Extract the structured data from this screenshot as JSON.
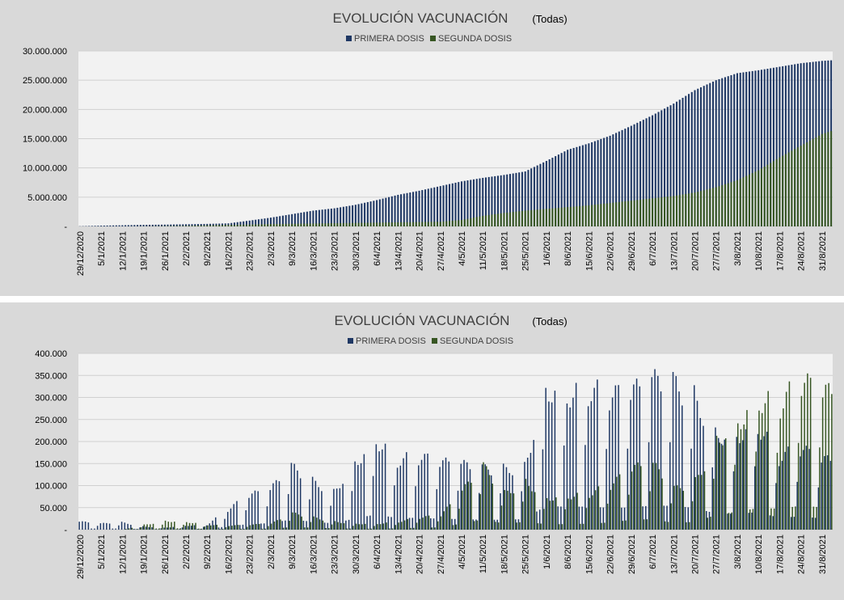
{
  "colors": {
    "first_dose": "#1f3864",
    "second_dose": "#375623",
    "plot_bg": "#f2f2f2",
    "grid": "#d0d0d0"
  },
  "chart_data": [
    {
      "type": "bar",
      "title": "EVOLUCIÓN VACUNACIÓN",
      "subtitle": "(Todas)",
      "legend": [
        "PRIMERA DOSIS",
        "SEGUNDA DOSIS"
      ],
      "legend_position": "top",
      "grid": true,
      "ylim": [
        0,
        30000000
      ],
      "ytick_labels": [
        "30.000.000",
        "25.000.000",
        "20.000.000",
        "15.000.000",
        "10.000.000",
        "5.000.000",
        "-"
      ],
      "xtick_labels": [
        "29/12/2020",
        "5/1/2021",
        "12/1/2021",
        "19/1/2021",
        "26/1/2021",
        "2/2/2021",
        "9/2/2021",
        "16/2/2021",
        "23/2/2021",
        "2/3/2021",
        "9/3/2021",
        "16/3/2021",
        "23/3/2021",
        "30/3/2021",
        "6/4/2021",
        "13/4/2021",
        "20/4/2021",
        "27/4/2021",
        "4/5/2021",
        "11/5/2021",
        "18/5/2021",
        "25/5/2021",
        "1/6/2021",
        "8/6/2021",
        "15/6/2021",
        "22/6/2021",
        "29/6/2021",
        "6/7/2021",
        "13/7/2021",
        "20/7/2021",
        "27/7/2021",
        "3/8/2021",
        "10/8/2021",
        "17/8/2021",
        "24/8/2021",
        "31/8/2021"
      ],
      "x_start": "2020-12-29",
      "x_end": "2021-09-03",
      "series": [
        {
          "name": "PRIMERA DOSIS",
          "x": [
            "29/12/2020",
            "5/1/2021",
            "12/1/2021",
            "19/1/2021",
            "26/1/2021",
            "2/2/2021",
            "9/2/2021",
            "16/2/2021",
            "23/2/2021",
            "2/3/2021",
            "9/3/2021",
            "16/3/2021",
            "23/3/2021",
            "30/3/2021",
            "6/4/2021",
            "13/4/2021",
            "20/4/2021",
            "27/4/2021",
            "4/5/2021",
            "11/5/2021",
            "18/5/2021",
            "25/5/2021",
            "1/6/2021",
            "8/6/2021",
            "15/6/2021",
            "22/6/2021",
            "29/6/2021",
            "6/7/2021",
            "13/7/2021",
            "20/7/2021",
            "27/7/2021",
            "3/8/2021",
            "10/8/2021",
            "17/8/2021",
            "24/8/2021",
            "31/8/2021",
            "3/9/2021"
          ],
          "values": [
            30000,
            130000,
            200000,
            270000,
            310000,
            370000,
            430000,
            520000,
            1000000,
            1500000,
            2100000,
            2700000,
            3100000,
            3700000,
            4500000,
            5400000,
            6100000,
            6900000,
            7700000,
            8300000,
            8800000,
            9400000,
            11200000,
            13100000,
            14200000,
            15500000,
            17200000,
            19000000,
            21000000,
            23300000,
            25000000,
            26200000,
            26700000,
            27300000,
            27900000,
            28300000,
            28400000
          ]
        },
        {
          "name": "SEGUNDA DOSIS",
          "x": [
            "29/12/2020",
            "5/1/2021",
            "12/1/2021",
            "19/1/2021",
            "26/1/2021",
            "2/2/2021",
            "9/2/2021",
            "16/2/2021",
            "23/2/2021",
            "2/3/2021",
            "9/3/2021",
            "16/3/2021",
            "23/3/2021",
            "30/3/2021",
            "6/4/2021",
            "13/4/2021",
            "20/4/2021",
            "27/4/2021",
            "4/5/2021",
            "11/5/2021",
            "18/5/2021",
            "25/5/2021",
            "1/6/2021",
            "8/6/2021",
            "15/6/2021",
            "22/6/2021",
            "29/6/2021",
            "6/7/2021",
            "13/7/2021",
            "20/7/2021",
            "27/7/2021",
            "3/8/2021",
            "10/8/2021",
            "17/8/2021",
            "24/8/2021",
            "31/8/2021",
            "3/9/2021"
          ],
          "values": [
            0,
            0,
            0,
            20000,
            60000,
            100000,
            180000,
            250000,
            330000,
            400000,
            450000,
            500000,
            550000,
            600000,
            650000,
            700000,
            750000,
            800000,
            1100000,
            1800000,
            2300000,
            2700000,
            3000000,
            3300000,
            3600000,
            4000000,
            4400000,
            4800000,
            5200000,
            5800000,
            6700000,
            7900000,
            9600000,
            11800000,
            13800000,
            15800000,
            16300000
          ]
        }
      ]
    },
    {
      "type": "bar",
      "title": "EVOLUCIÓN VACUNACIÓN",
      "subtitle": "(Todas)",
      "legend": [
        "PRIMERA DOSIS",
        "SEGUNDA DOSIS"
      ],
      "legend_position": "top",
      "grid": true,
      "ylim": [
        0,
        400000
      ],
      "ytick_labels": [
        "400.000",
        "350.000",
        "300.000",
        "250.000",
        "200.000",
        "150.000",
        "100.000",
        "50.000",
        "-"
      ],
      "xtick_labels": [
        "29/12/2020",
        "5/1/2021",
        "12/1/2021",
        "19/1/2021",
        "26/1/2021",
        "2/2/2021",
        "9/2/2021",
        "16/2/2021",
        "23/2/2021",
        "2/3/2021",
        "9/3/2021",
        "16/3/2021",
        "23/3/2021",
        "30/3/2021",
        "6/4/2021",
        "13/4/2021",
        "20/4/2021",
        "27/4/2021",
        "4/5/2021",
        "11/5/2021",
        "18/5/2021",
        "25/5/2021",
        "1/6/2021",
        "8/6/2021",
        "15/6/2021",
        "22/6/2021",
        "29/6/2021",
        "6/7/2021",
        "13/7/2021",
        "20/7/2021",
        "27/7/2021",
        "3/8/2021",
        "10/8/2021",
        "17/8/2021",
        "24/8/2021",
        "31/8/2021"
      ],
      "x_start": "2020-12-29",
      "x_end": "2021-09-03",
      "series": [
        {
          "name": "PRIMERA DOSIS",
          "x": [
            "29/12/2020",
            "5/1/2021",
            "12/1/2021",
            "19/1/2021",
            "26/1/2021",
            "2/2/2021",
            "9/2/2021",
            "16/2/2021",
            "23/2/2021",
            "2/3/2021",
            "9/3/2021",
            "16/3/2021",
            "23/3/2021",
            "30/3/2021",
            "6/4/2021",
            "13/4/2021",
            "20/4/2021",
            "27/4/2021",
            "4/5/2021",
            "11/5/2021",
            "18/5/2021",
            "25/5/2021",
            "1/6/2021",
            "8/6/2021",
            "15/6/2021",
            "22/6/2021",
            "29/6/2021",
            "6/7/2021",
            "13/7/2021",
            "20/7/2021",
            "27/7/2021",
            "3/8/2021",
            "10/8/2021",
            "17/8/2021",
            "24/8/2021",
            "31/8/2021"
          ],
          "values": [
            20000,
            15000,
            18000,
            8000,
            5000,
            10000,
            12000,
            50000,
            85000,
            98000,
            155000,
            120000,
            95000,
            170000,
            230000,
            175000,
            180000,
            165000,
            160000,
            150000,
            150000,
            160000,
            360000,
            345000,
            350000,
            330000,
            335000,
            365000,
            360000,
            330000,
            245000,
            240000,
            265000,
            180000,
            200000,
            170000
          ]
        },
        {
          "name": "SEGUNDA DOSIS",
          "x": [
            "29/12/2020",
            "5/1/2021",
            "12/1/2021",
            "19/1/2021",
            "26/1/2021",
            "2/2/2021",
            "9/2/2021",
            "16/2/2021",
            "23/2/2021",
            "2/3/2021",
            "9/3/2021",
            "16/3/2021",
            "23/3/2021",
            "30/3/2021",
            "6/4/2021",
            "13/4/2021",
            "20/4/2021",
            "27/4/2021",
            "4/5/2021",
            "11/5/2021",
            "18/5/2021",
            "25/5/2021",
            "1/6/2021",
            "8/6/2021",
            "15/6/2021",
            "22/6/2021",
            "29/6/2021",
            "6/7/2021",
            "13/7/2021",
            "20/7/2021",
            "27/7/2021",
            "3/8/2021",
            "10/8/2021",
            "17/8/2021",
            "24/8/2021",
            "31/8/2021"
          ],
          "values": [
            0,
            0,
            0,
            12000,
            22000,
            20000,
            12000,
            10000,
            12000,
            15000,
            40000,
            30000,
            20000,
            15000,
            15000,
            20000,
            30000,
            35000,
            95000,
            155000,
            90000,
            120000,
            80000,
            85000,
            90000,
            110000,
            150000,
            160000,
            100000,
            120000,
            225000,
            275000,
            330000,
            315000,
            365000,
            335000
          ]
        }
      ]
    }
  ]
}
